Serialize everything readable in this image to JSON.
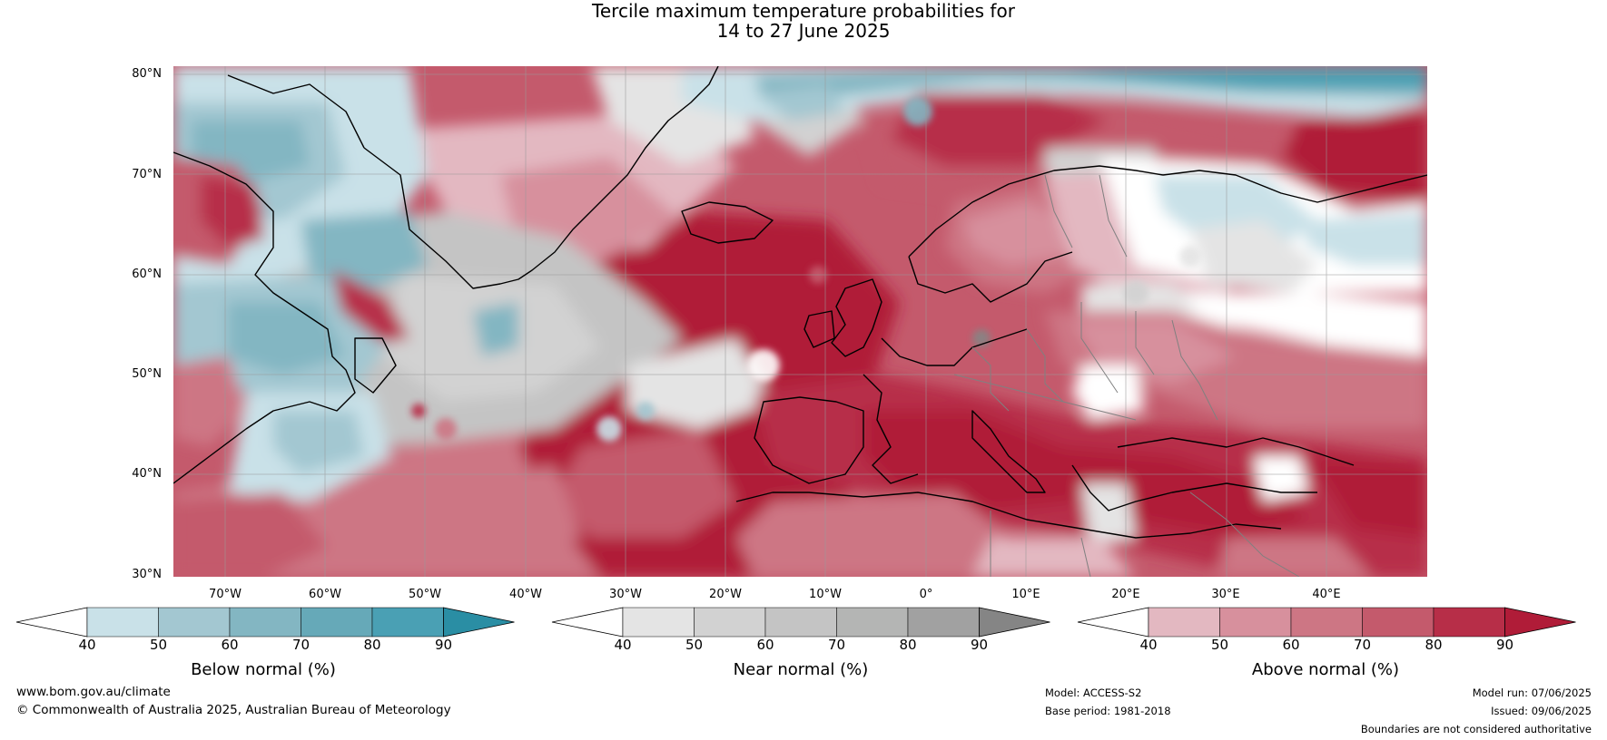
{
  "title": {
    "line1": "Tercile maximum temperature probabilities for",
    "line2": "14 to 27 June 2025"
  },
  "map": {
    "lat_labels": [
      "80°N",
      "70°N",
      "60°N",
      "50°N",
      "40°N",
      "30°N"
    ],
    "lon_labels": [
      "70°W",
      "60°W",
      "50°W",
      "40°W",
      "30°W",
      "20°W",
      "10°W",
      "0°",
      "10°E",
      "20°E",
      "30°E",
      "40°E"
    ],
    "colors": {
      "below": [
        "#c9e1e8",
        "#a3c7d1",
        "#83b6c2",
        "#66a9b8",
        "#4aa0b4",
        "#2a8ea4"
      ],
      "near": [
        "#e4e4e4",
        "#d2d2d2",
        "#c4c4c4",
        "#b4b5b4",
        "#a1a1a1",
        "#858585"
      ],
      "above": [
        "#e3b8c1",
        "#d7909d",
        "#cd7684",
        "#c45a6c",
        "#b72e48",
        "#b01c38"
      ],
      "coast": "#000000",
      "borders": "#808080"
    }
  },
  "colorbars": [
    {
      "label": "Below normal (%)",
      "ticks": [
        "40",
        "50",
        "60",
        "70",
        "80",
        "90"
      ]
    },
    {
      "label": "Near normal (%)",
      "ticks": [
        "40",
        "50",
        "60",
        "70",
        "80",
        "90"
      ]
    },
    {
      "label": "Above normal (%)",
      "ticks": [
        "40",
        "50",
        "60",
        "70",
        "80",
        "90"
      ]
    }
  ],
  "footer": {
    "website": "www.bom.gov.au/climate",
    "copyright": "© Commonwealth of Australia 2025, Australian Bureau of Meteorology",
    "model": "Model: ACCESS-S2",
    "base_period": "Base period: 1981-2018",
    "model_run": "Model run: 07/06/2025",
    "issued": "Issued: 09/06/2025",
    "disclaimer": "Boundaries are not considered authoritative"
  }
}
